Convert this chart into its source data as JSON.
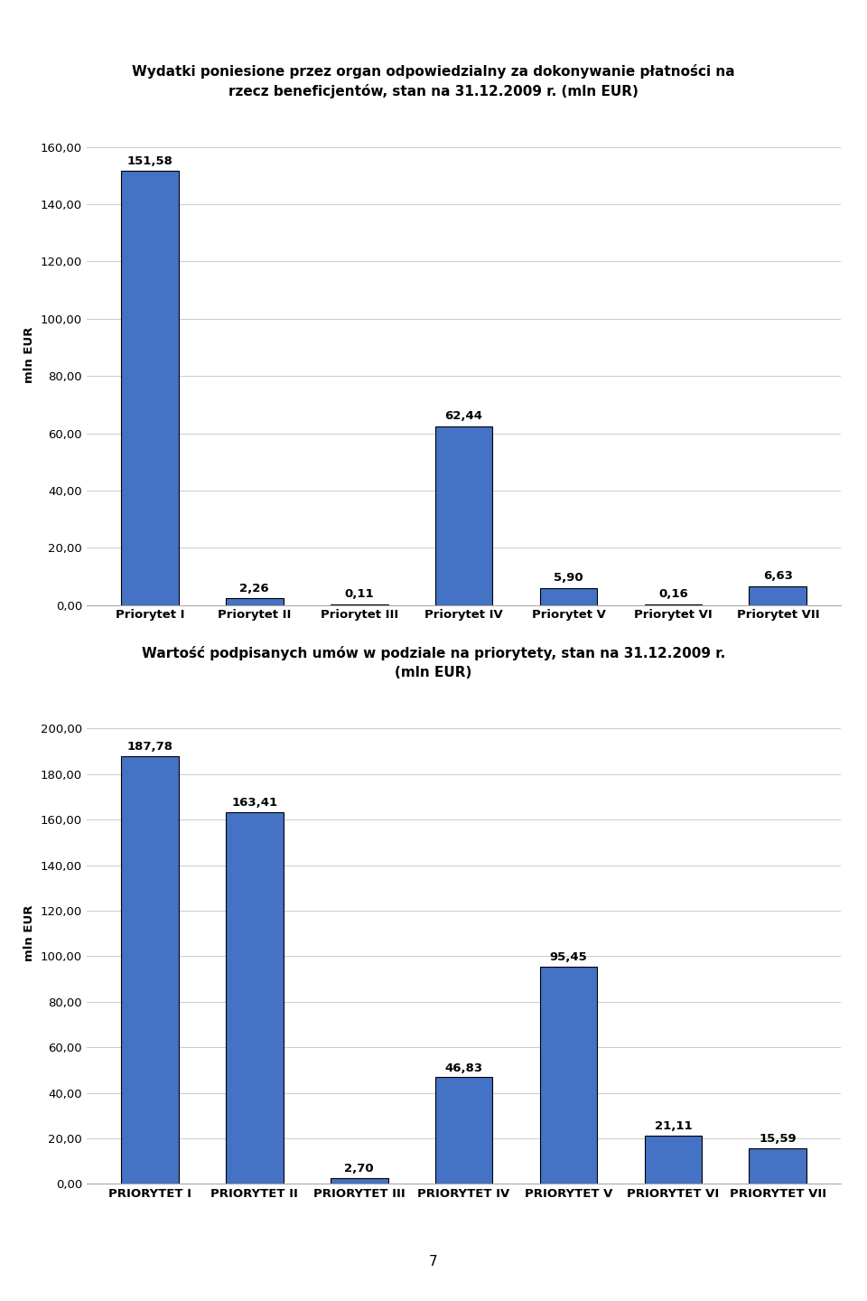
{
  "chart1": {
    "title_line1": "Wydatki poniesione przez organ odpowiedzialny za dokonywanie płatności na",
    "title_line2": "rzecz beneficjentów, stan na 31.12.2009 r. (mln EUR)",
    "categories": [
      "Priorytet I",
      "Priorytet II",
      "Priorytet III",
      "Priorytet IV",
      "Priorytet V",
      "Priorytet VI",
      "Priorytet VII"
    ],
    "values": [
      151.58,
      2.26,
      0.11,
      62.44,
      5.9,
      0.16,
      6.63
    ],
    "ylabel": "mln EUR",
    "ylim": [
      0,
      175
    ],
    "yticks": [
      0,
      20,
      40,
      60,
      80,
      100,
      120,
      140,
      160
    ],
    "ytick_labels": [
      "0,00",
      "20,00",
      "40,00",
      "60,00",
      "80,00",
      "100,00",
      "120,00",
      "140,00",
      "160,00"
    ],
    "bar_color": "#4472C4",
    "bar_edge_color": "#000000"
  },
  "chart2": {
    "title_line1": "Wartość podpisanych umów w podziale na priorytety, stan na 31.12.2009 r.",
    "title_line2": "(mln EUR)",
    "categories": [
      "PRIORYTET I",
      "PRIORYTET II",
      "PRIORYTET III",
      "PRIORYTET IV",
      "PRIORYTET V",
      "PRIORYTET VI",
      "PRIORYTET VII"
    ],
    "values": [
      187.78,
      163.41,
      2.7,
      46.83,
      95.45,
      21.11,
      15.59
    ],
    "ylabel": "mln EUR",
    "ylim": [
      0,
      220
    ],
    "yticks": [
      0,
      20,
      40,
      60,
      80,
      100,
      120,
      140,
      160,
      180,
      200
    ],
    "ytick_labels": [
      "0,00",
      "20,00",
      "40,00",
      "60,00",
      "80,00",
      "100,00",
      "120,00",
      "140,00",
      "160,00",
      "180,00",
      "200,00"
    ],
    "bar_color": "#4472C4",
    "bar_edge_color": "#000000"
  },
  "page_number": "7",
  "bg_color": "#FFFFFF",
  "title_fontsize": 11,
  "label_fontsize": 9.5,
  "tick_fontsize": 9.5,
  "bar_label_fontsize": 9.5,
  "ylabel_fontsize": 9.5
}
